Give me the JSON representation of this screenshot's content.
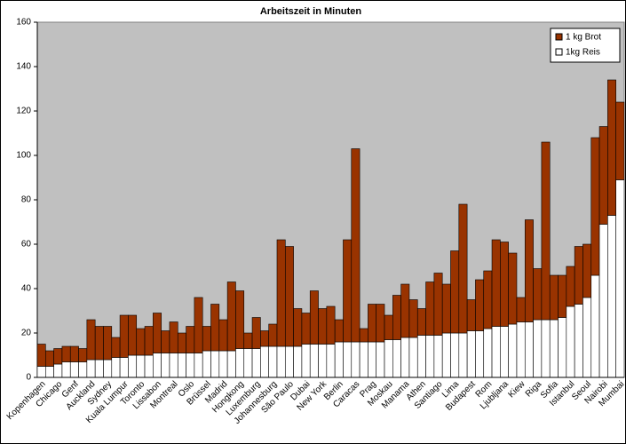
{
  "chart_data": {
    "type": "stacked_bar",
    "title": "Arbeitszeit in Minuten",
    "categories": [
      "Kopenhagen",
      null,
      "Chicago",
      null,
      "Genf",
      null,
      "Auckland",
      null,
      "Sydney",
      null,
      "Kuala Lumpur",
      null,
      "Toronto",
      null,
      "Lissabon",
      null,
      "Montreal",
      null,
      "Oslo",
      null,
      "Brüssel",
      null,
      "Madrid",
      null,
      "Hongkong",
      null,
      "Luxemburg",
      null,
      "Johannesburg",
      null,
      "São Paulo",
      null,
      "Dubai",
      null,
      "New York",
      null,
      "Berlin",
      null,
      "Caracas",
      null,
      "Prag",
      null,
      "Moskau",
      null,
      "Manama",
      null,
      "Athen",
      null,
      "Santiago",
      null,
      "Lima",
      null,
      "Budapest",
      null,
      "Rom",
      null,
      "Ljubljana",
      null,
      "Kiew",
      null,
      "Riga",
      null,
      "Sofia",
      null,
      "Istanbul",
      null,
      "Seoul",
      null,
      "Nairobi",
      null,
      "Mumbai"
    ],
    "series": [
      {
        "name": "1 kg Brot",
        "color": "#993300",
        "values": [
          10,
          7,
          7,
          7,
          7,
          6,
          18,
          15,
          15,
          9,
          19,
          18,
          12,
          13,
          18,
          10,
          14,
          9,
          12,
          25,
          11,
          21,
          14,
          31,
          26,
          7,
          14,
          7,
          10,
          48,
          45,
          17,
          14,
          24,
          16,
          17,
          10,
          46,
          87,
          6,
          17,
          17,
          11,
          20,
          24,
          17,
          12,
          24,
          28,
          22,
          37,
          58,
          14,
          23,
          26,
          39,
          38,
          32,
          11,
          46,
          23,
          80,
          20,
          19,
          18,
          26,
          24,
          62,
          44,
          61,
          35
        ]
      },
      {
        "name": "1kg Reis",
        "color": "#ffffff",
        "values": [
          5,
          5,
          6,
          7,
          7,
          7,
          8,
          8,
          8,
          9,
          9,
          10,
          10,
          10,
          11,
          11,
          11,
          11,
          11,
          11,
          12,
          12,
          12,
          12,
          13,
          13,
          13,
          14,
          14,
          14,
          14,
          14,
          15,
          15,
          15,
          15,
          16,
          16,
          16,
          16,
          16,
          16,
          17,
          17,
          18,
          18,
          19,
          19,
          19,
          20,
          20,
          20,
          21,
          21,
          22,
          23,
          23,
          24,
          25,
          25,
          26,
          26,
          26,
          27,
          32,
          33,
          36,
          46,
          69,
          73,
          89
        ]
      }
    ],
    "ylim": [
      0,
      160
    ],
    "yticks": [
      0,
      20,
      40,
      60,
      80,
      100,
      120,
      140,
      160
    ],
    "grid": false,
    "legend": "top-right"
  }
}
